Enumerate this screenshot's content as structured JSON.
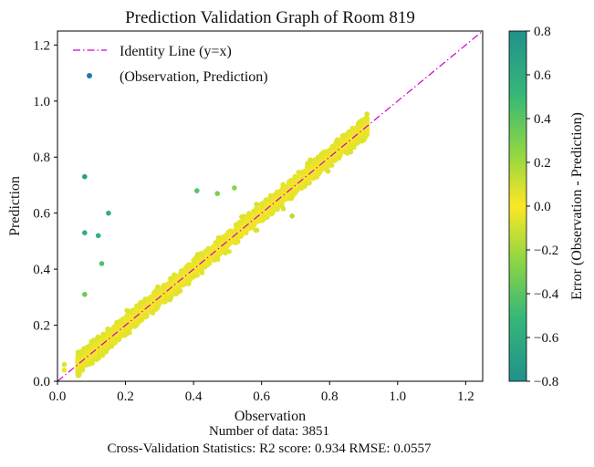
{
  "chart_data": {
    "type": "scatter",
    "title": "Prediction Validation Graph of Room 819",
    "xlabel": "Observation",
    "ylabel": "Prediction",
    "xlim": [
      0.0,
      1.25
    ],
    "ylim": [
      0.0,
      1.25
    ],
    "xticks": [
      "0.0",
      "0.2",
      "0.4",
      "0.6",
      "0.8",
      "1.0",
      "1.2"
    ],
    "yticks": [
      "0.0",
      "0.2",
      "0.4",
      "0.6",
      "0.8",
      "1.0",
      "1.2"
    ],
    "grid": false,
    "legend": {
      "position": "top-left",
      "entries": [
        "Identity Line (y=x)",
        "(Observation, Prediction)"
      ]
    },
    "identity_line": {
      "color": "#cc00cc",
      "style": "dash-dot"
    },
    "series": [
      {
        "name": "(Observation, Prediction)",
        "n_points": 3851,
        "observation_range": [
          0.0,
          0.91
        ],
        "notable_points": [
          {
            "x": 0.08,
            "y": 0.73
          },
          {
            "x": 0.08,
            "y": 0.53
          },
          {
            "x": 0.12,
            "y": 0.52
          },
          {
            "x": 0.15,
            "y": 0.6
          },
          {
            "x": 0.13,
            "y": 0.42
          },
          {
            "x": 0.08,
            "y": 0.31
          },
          {
            "x": 0.41,
            "y": 0.68
          },
          {
            "x": 0.47,
            "y": 0.67
          },
          {
            "x": 0.52,
            "y": 0.69
          },
          {
            "x": 0.69,
            "y": 0.59
          },
          {
            "x": 0.02,
            "y": 0.06
          },
          {
            "x": 0.02,
            "y": 0.04
          },
          {
            "x": 0.91,
            "y": 0.92
          }
        ]
      }
    ],
    "colorbar": {
      "label": "Error (Observation - Prediction)",
      "range": [
        -0.8,
        0.8
      ],
      "ticks": [
        "−0.8",
        "−0.6",
        "−0.4",
        "−0.2",
        "0.0",
        "0.2",
        "0.4",
        "0.6",
        "0.8"
      ],
      "colors": [
        "#21918c",
        "#35b779",
        "#90d743",
        "#fde725",
        "#90d743",
        "#35b779",
        "#21918c"
      ]
    }
  },
  "captions": {
    "count": "Number of data: 3851",
    "stats": "Cross-Validation Statistics: R2 score: 0.934  RMSE: 0.0557"
  }
}
